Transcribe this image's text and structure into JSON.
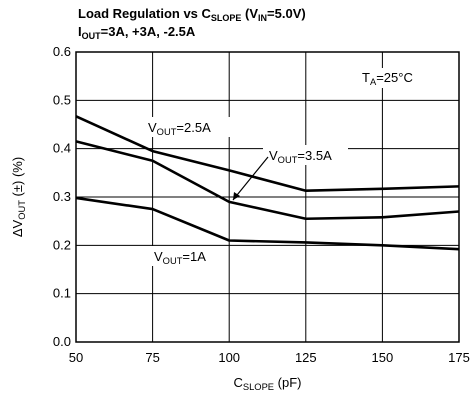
{
  "chart_data": {
    "type": "line",
    "title": {
      "line1": {
        "prefix": "Load Regulation vs C",
        "sub1": "SLOPE",
        "mid": " (V",
        "sub2": "IN",
        "suffix": "=5.0V)"
      },
      "line2": {
        "prefix": "I",
        "sub": "OUT",
        "suffix": "=3A, +3A, -2.5A"
      }
    },
    "xlabel": {
      "main": "C",
      "sub": "SLOPE",
      "suffix": " (pF)"
    },
    "ylabel": {
      "prefix": "ΔV",
      "sub": "OUT",
      "suffix": " (±) (%)"
    },
    "x_ticks": [
      "50",
      "75",
      "100",
      "125",
      "150",
      "175"
    ],
    "y_ticks": [
      "0.0",
      "0.1",
      "0.2",
      "0.3",
      "0.4",
      "0.5",
      "0.6"
    ],
    "xlim": [
      50,
      175
    ],
    "ylim": [
      0,
      0.6
    ],
    "grid": true,
    "temperature_note": {
      "prefix": "T",
      "sub": "A",
      "suffix": "=25°C"
    },
    "series": [
      {
        "name": "V_OUT=3.5A",
        "label": {
          "prefix": "V",
          "sub": "OUT",
          "suffix": "=3.5A"
        },
        "x": [
          50,
          75,
          100,
          125,
          150,
          175
        ],
        "y": [
          0.415,
          0.375,
          0.29,
          0.255,
          0.258,
          0.27
        ]
      },
      {
        "name": "V_OUT=2.5A",
        "label": {
          "prefix": "V",
          "sub": "OUT",
          "suffix": "=2.5A"
        },
        "x": [
          50,
          75,
          100,
          125,
          150,
          175
        ],
        "y": [
          0.467,
          0.395,
          0.355,
          0.313,
          0.317,
          0.322
        ]
      },
      {
        "name": "V_OUT=1A",
        "label": {
          "prefix": "V",
          "sub": "OUT",
          "suffix": "=1A"
        },
        "x": [
          50,
          75,
          100,
          125,
          150,
          175
        ],
        "y": [
          0.298,
          0.275,
          0.21,
          0.206,
          0.2,
          0.192
        ]
      }
    ]
  }
}
